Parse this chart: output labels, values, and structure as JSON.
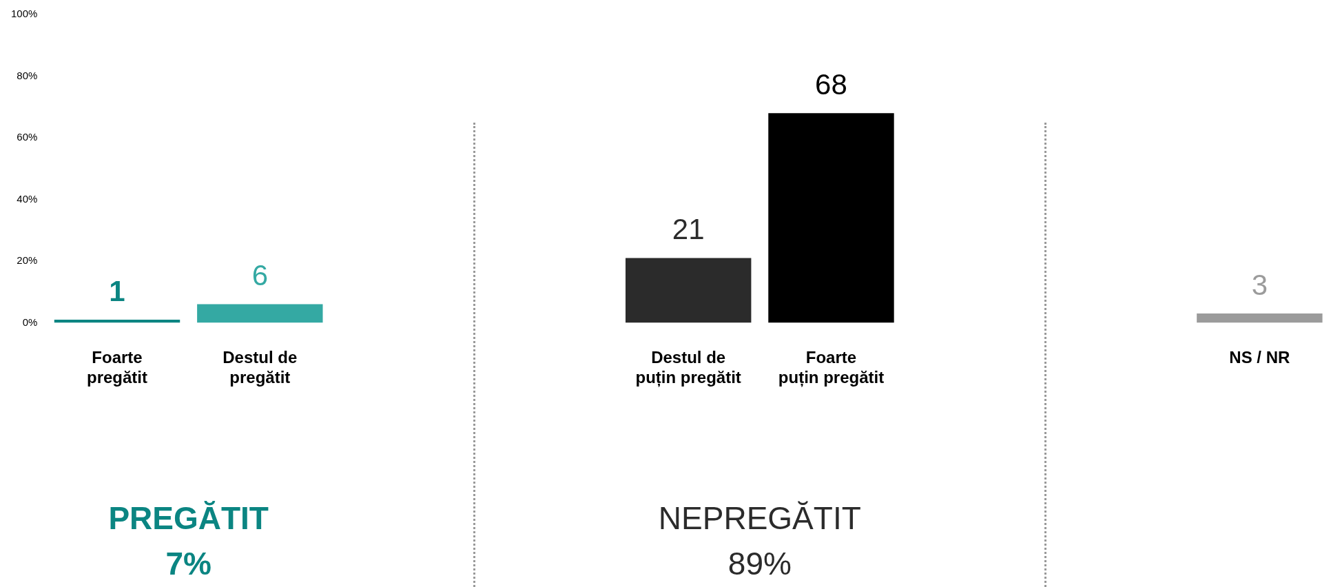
{
  "chart_data": {
    "type": "bar",
    "categories": [
      "Foarte\npregătit",
      "Destul de\npregătit",
      null,
      null,
      "Destul de\npuțin pregătit",
      "Foarte\npuțin pregătit",
      null,
      null,
      "NS / NR"
    ],
    "values": [
      1,
      6,
      null,
      null,
      21,
      68,
      null,
      null,
      3
    ],
    "colors": [
      "#0b8582",
      "#34a9a3",
      "#000000",
      "#000000",
      "#2b2b2b",
      "#000000",
      "#000000",
      "#000000",
      "#9b9b9b"
    ],
    "ylim": [
      0,
      100
    ],
    "yticks": [
      {
        "value": 0,
        "label": "0%"
      },
      {
        "value": 20,
        "label": "20%"
      },
      {
        "value": 40,
        "label": "40%"
      },
      {
        "value": 60,
        "label": "60%"
      },
      {
        "value": 80,
        "label": "80%"
      },
      {
        "value": 100,
        "label": "100%"
      }
    ],
    "grid": false,
    "legend": false,
    "data_labels": true,
    "annotations": [
      "PREGĂTIT",
      "7%",
      "NEPREGĂTIT",
      "89%"
    ]
  }
}
